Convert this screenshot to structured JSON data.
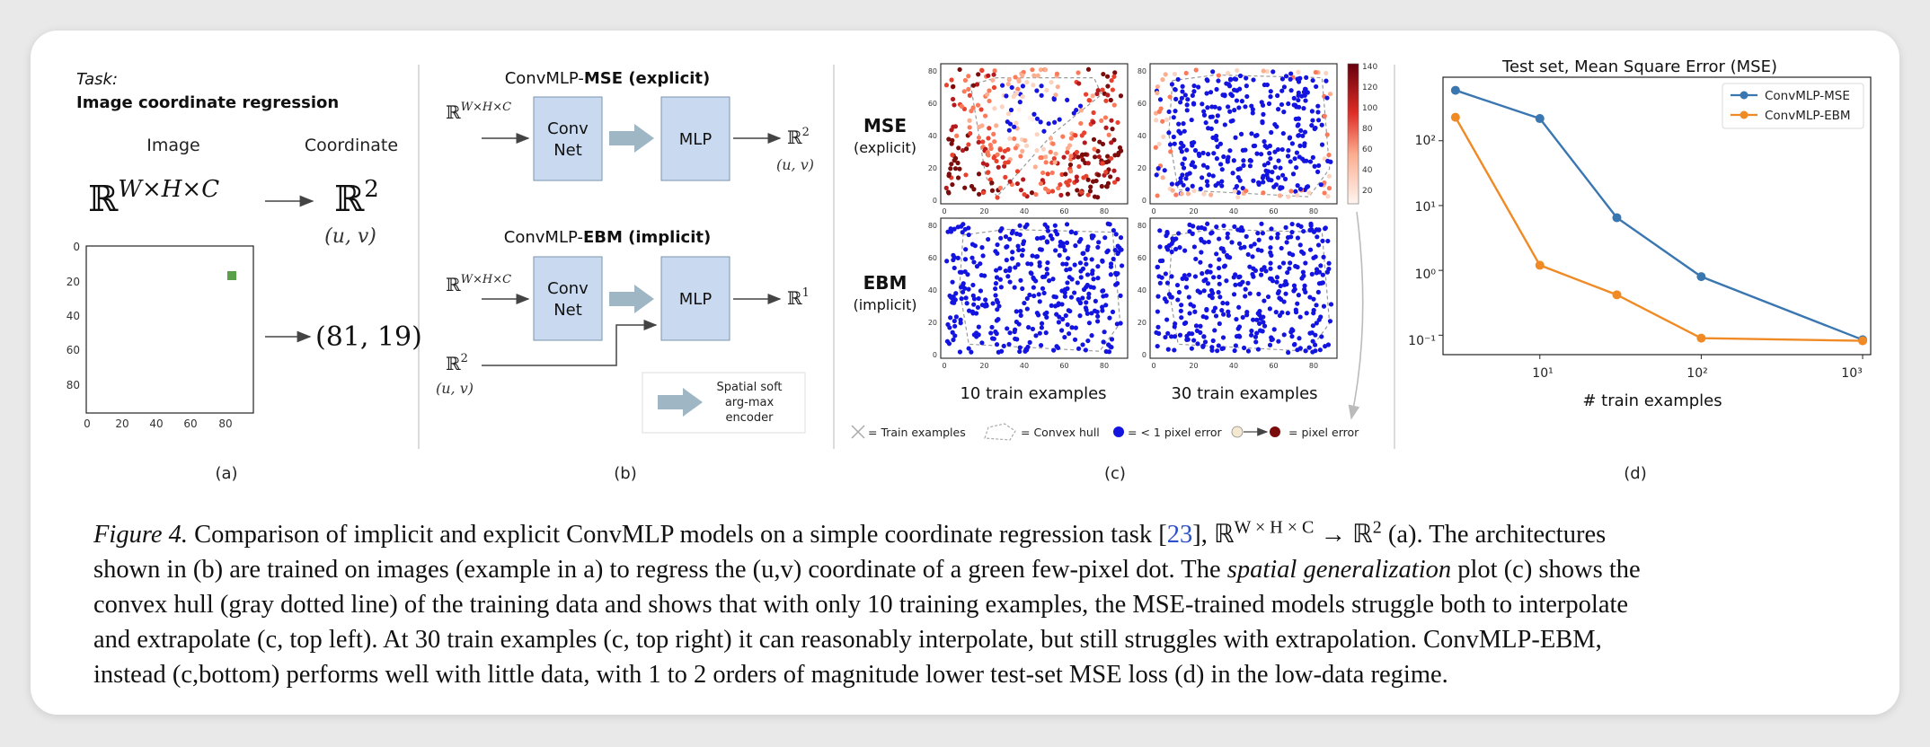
{
  "panel_a": {
    "task_label": "Task:",
    "task_title": "Image coordinate regression",
    "col_image": "Image",
    "col_coordinate": "Coordinate",
    "input_space": "ℝ",
    "input_space_sup": "W×H×C",
    "output_space": "ℝ",
    "output_space_sup": "2",
    "output_vars": "(u, v)",
    "result": "(81, 19)",
    "plot_yticks": [
      "0",
      "20",
      "40",
      "60",
      "80"
    ],
    "plot_xticks": [
      "0",
      "20",
      "40",
      "60",
      "80"
    ],
    "dot_position": {
      "x": 81,
      "y": 19
    },
    "dot_color": "#5aa04a",
    "label": "(a)"
  },
  "panel_b": {
    "top_title_prefix": "ConvMLP-",
    "top_title_bold": "MSE",
    "top_title_suffix": " (explicit)",
    "bottom_title_prefix": "ConvMLP-",
    "bottom_title_bold": "EBM",
    "bottom_title_suffix": " (implicit)",
    "input_space": "ℝ",
    "input_space_sup": "W×H×C",
    "conv_label_1": "Conv",
    "conv_label_2": "Net",
    "mlp_label": "MLP",
    "top_output": "ℝ",
    "top_output_sup": "2",
    "top_output_vars": "(u, v)",
    "bottom_output": "ℝ",
    "bottom_output_sup": "1",
    "side_input": "ℝ",
    "side_input_sup": "2",
    "side_input_vars": "(u, v)",
    "legend_line1": "Spatial soft",
    "legend_line2": "arg-max",
    "legend_line3": "encoder",
    "box_color": "#c9daf0",
    "arrow_color": "#9fb6c4",
    "label": "(b)"
  },
  "panel_c": {
    "row_mse": "MSE",
    "row_mse_sub": "(explicit)",
    "row_ebm": "EBM",
    "row_ebm_sub": "(implicit)",
    "col_10": "10 train examples",
    "col_30": "30 train examples",
    "yticks": [
      "0",
      "20",
      "40",
      "60",
      "80"
    ],
    "xticks": [
      "0",
      "20",
      "40",
      "60",
      "80"
    ],
    "colorbar_ticks": [
      "140",
      "120",
      "100",
      "80",
      "60",
      "40",
      "20"
    ],
    "legend_train": "= Train examples",
    "legend_hull": "= Convex hull",
    "legend_good": "= < 1 pixel error",
    "legend_error": "= pixel error",
    "good_color": "#1414e0",
    "error_color": "#7a0c0c",
    "label": "(c)"
  },
  "panel_d": {
    "label": "(d)"
  },
  "chart_data": {
    "type": "line",
    "title": "Test set, Mean Square Error (MSE)",
    "xlabel": "# train examples",
    "ylabel": "",
    "x_scale": "log",
    "y_scale": "log",
    "x_ticks": [
      "10¹",
      "10²",
      "10³"
    ],
    "y_ticks": [
      "10²",
      "10¹",
      "10⁰",
      "10⁻¹"
    ],
    "legend_position": "top-right",
    "series": [
      {
        "name": "ConvMLP-MSE",
        "color": "#3a76b0",
        "x": [
          3,
          10,
          30,
          100,
          1000
        ],
        "y": [
          600,
          220,
          6.5,
          0.8,
          0.085
        ]
      },
      {
        "name": "ConvMLP-EBM",
        "color": "#f08a24",
        "x": [
          3,
          10,
          30,
          100,
          1000
        ],
        "y": [
          230,
          1.2,
          0.42,
          0.09,
          0.082
        ]
      }
    ]
  },
  "caption": {
    "fig_label": "Figure 4.",
    "l1_a": " Comparison of implicit and explicit ConvMLP models on a simple coordinate regression task [",
    "l1_ref": "23",
    "l1_b": "], ℝ",
    "l1_sup": "W × H × C",
    "l1_c": " → ℝ",
    "l1_sup2": "2",
    "l1_d": " (a). The architectures",
    "l2_a": "shown in (b) are trained on images (example in a) to regress the (u,v) coordinate of a green few-pixel dot. The ",
    "l2_italic": "spatial generalization",
    "l2_b": " plot (c) shows the",
    "l3": "convex hull (gray dotted line) of the training data and shows that with only 10 training examples, the MSE-trained models struggle both to interpolate",
    "l4": "and extrapolate (c, top left).  At 30 train examples (c, top right) it can reasonably interpolate, but still struggles with extrapolation.  ConvMLP-EBM,",
    "l5": "instead (c,bottom) performs well with little data, with 1 to 2 orders of magnitude lower test-set MSE loss (d) in the low-data regime."
  }
}
